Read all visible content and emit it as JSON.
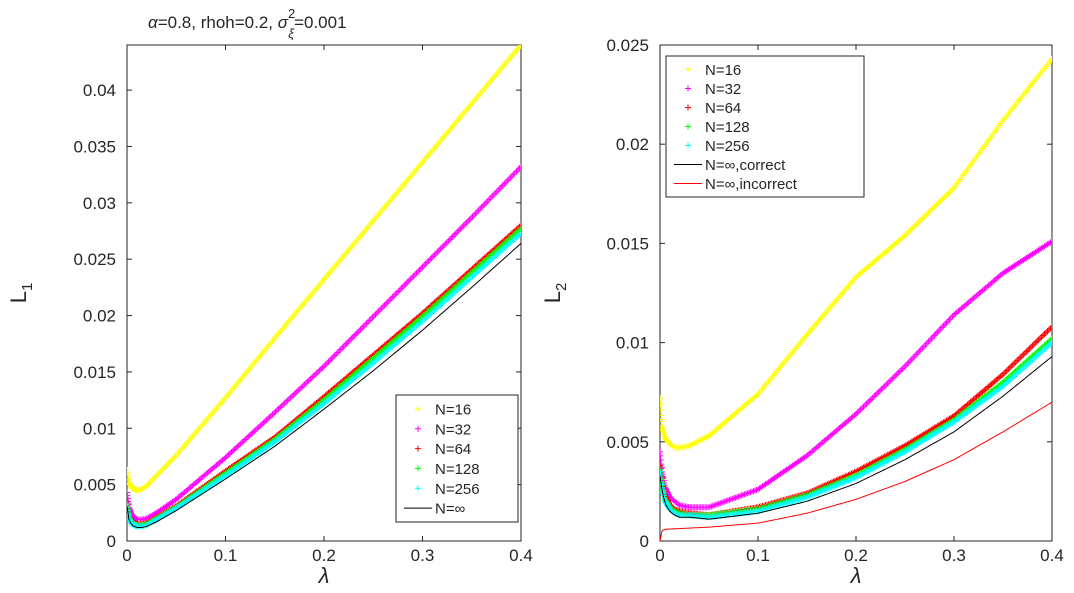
{
  "title": {
    "alpha": "0.8",
    "rhoh": "0.2",
    "sigma_xi_sq": "0.001",
    "parts": [
      {
        "sym": "α",
        "text": "=0.8, rhoh=0.2, "
      },
      {
        "sym": "σ",
        "text": ""
      },
      {
        "text": "=0.001"
      }
    ]
  },
  "colors": {
    "N=16": "#ffff00",
    "N=32": "#ff00ff",
    "N=64": "#ff0000",
    "N=128": "#00ff00",
    "N=256": "#00ffff",
    "N=∞": "#000000",
    "N=∞,correct": "#000000",
    "N=∞,incorrect": "#ff0000"
  },
  "chart_data": [
    {
      "type": "scatter",
      "xlabel": "λ",
      "ylabel": "L",
      "ylabel_sub": "1",
      "xlim": [
        0,
        0.4
      ],
      "ylim": [
        0,
        0.044
      ],
      "xticks": [
        "0",
        "0.1",
        "0.2",
        "0.3",
        "0.4"
      ],
      "yticks": [
        "0",
        "0.005",
        "0.01",
        "0.015",
        "0.02",
        "0.025",
        "0.03",
        "0.035",
        "0.04"
      ],
      "legend_position": "bottom-right",
      "series": [
        {
          "name": "N=16",
          "style": "markers",
          "x": [
            0,
            0.002,
            0.005,
            0.01,
            0.015,
            0.02,
            0.03,
            0.05,
            0.1,
            0.15,
            0.2,
            0.25,
            0.3,
            0.35,
            0.4
          ],
          "y": [
            0.0063,
            0.0052,
            0.0047,
            0.0045,
            0.0046,
            0.0049,
            0.0058,
            0.0076,
            0.0127,
            0.018,
            0.0232,
            0.0284,
            0.0336,
            0.0388,
            0.044
          ]
        },
        {
          "name": "N=32",
          "style": "markers",
          "x": [
            0,
            0.002,
            0.005,
            0.01,
            0.015,
            0.02,
            0.03,
            0.05,
            0.1,
            0.15,
            0.2,
            0.25,
            0.3,
            0.35,
            0.4
          ],
          "y": [
            0.0043,
            0.003,
            0.0023,
            0.0019,
            0.0019,
            0.002,
            0.0025,
            0.0037,
            0.0074,
            0.0114,
            0.0155,
            0.0199,
            0.0243,
            0.0287,
            0.0332
          ]
        },
        {
          "name": "N=64",
          "style": "markers",
          "x": [
            0,
            0.002,
            0.005,
            0.01,
            0.015,
            0.02,
            0.03,
            0.05,
            0.1,
            0.15,
            0.2,
            0.25,
            0.3,
            0.35,
            0.4
          ],
          "y": [
            0.0035,
            0.0022,
            0.0017,
            0.0015,
            0.0015,
            0.0016,
            0.0021,
            0.0031,
            0.0062,
            0.0092,
            0.0128,
            0.0165,
            0.0202,
            0.0241,
            0.028
          ]
        },
        {
          "name": "N=128",
          "style": "markers",
          "x": [
            0,
            0.002,
            0.005,
            0.01,
            0.015,
            0.02,
            0.03,
            0.05,
            0.1,
            0.15,
            0.2,
            0.25,
            0.3,
            0.35,
            0.4
          ],
          "y": [
            0.0033,
            0.0021,
            0.0016,
            0.0014,
            0.0014,
            0.0015,
            0.002,
            0.003,
            0.006,
            0.009,
            0.0125,
            0.0162,
            0.0199,
            0.0238,
            0.0277
          ]
        },
        {
          "name": "N=256",
          "style": "markers",
          "x": [
            0,
            0.002,
            0.005,
            0.01,
            0.015,
            0.02,
            0.03,
            0.05,
            0.1,
            0.15,
            0.2,
            0.25,
            0.3,
            0.35,
            0.4
          ],
          "y": [
            0.0032,
            0.002,
            0.0015,
            0.0013,
            0.0013,
            0.0014,
            0.0019,
            0.0029,
            0.0058,
            0.0088,
            0.0122,
            0.0158,
            0.0195,
            0.0234,
            0.0273
          ]
        },
        {
          "name": "N=∞",
          "style": "line",
          "x": [
            0,
            0.002,
            0.005,
            0.01,
            0.015,
            0.02,
            0.03,
            0.05,
            0.1,
            0.15,
            0.2,
            0.25,
            0.3,
            0.35,
            0.4
          ],
          "y": [
            0.0031,
            0.0019,
            0.0014,
            0.0012,
            0.0012,
            0.0013,
            0.0017,
            0.0027,
            0.0055,
            0.0084,
            0.0117,
            0.0151,
            0.0187,
            0.0225,
            0.0264
          ]
        }
      ]
    },
    {
      "type": "scatter",
      "xlabel": "λ",
      "ylabel": "L",
      "ylabel_sub": "2",
      "xlim": [
        0,
        0.4
      ],
      "ylim": [
        0,
        0.025
      ],
      "xticks": [
        "0",
        "0.1",
        "0.2",
        "0.3",
        "0.4"
      ],
      "yticks": [
        "0",
        "0.005",
        "0.01",
        "0.015",
        "0.02",
        "0.025"
      ],
      "legend_position": "top-left",
      "series": [
        {
          "name": "N=16",
          "style": "markers",
          "x": [
            0,
            0.002,
            0.005,
            0.01,
            0.015,
            0.02,
            0.03,
            0.05,
            0.1,
            0.15,
            0.2,
            0.25,
            0.3,
            0.35,
            0.4
          ],
          "y": [
            0.0072,
            0.0058,
            0.0052,
            0.0049,
            0.0047,
            0.0047,
            0.0048,
            0.0053,
            0.0074,
            0.0104,
            0.0133,
            0.0154,
            0.0178,
            0.0212,
            0.0243
          ]
        },
        {
          "name": "N=32",
          "style": "markers",
          "x": [
            0,
            0.002,
            0.005,
            0.01,
            0.015,
            0.02,
            0.03,
            0.05,
            0.1,
            0.15,
            0.2,
            0.25,
            0.3,
            0.35,
            0.4
          ],
          "y": [
            0.0045,
            0.0035,
            0.0027,
            0.0022,
            0.002,
            0.0018,
            0.0017,
            0.0017,
            0.0026,
            0.0043,
            0.0064,
            0.0088,
            0.0114,
            0.0135,
            0.0151
          ]
        },
        {
          "name": "N=64",
          "style": "markers",
          "x": [
            0,
            0.002,
            0.005,
            0.01,
            0.015,
            0.02,
            0.03,
            0.05,
            0.1,
            0.15,
            0.2,
            0.25,
            0.3,
            0.35,
            0.4
          ],
          "y": [
            0.0038,
            0.003,
            0.0023,
            0.0018,
            0.0016,
            0.0015,
            0.0014,
            0.0013,
            0.0017,
            0.0024,
            0.0035,
            0.0048,
            0.0063,
            0.0084,
            0.0108
          ]
        },
        {
          "name": "N=128",
          "style": "markers",
          "x": [
            0,
            0.002,
            0.005,
            0.01,
            0.015,
            0.02,
            0.03,
            0.05,
            0.1,
            0.15,
            0.2,
            0.25,
            0.3,
            0.35,
            0.4
          ],
          "y": [
            0.0036,
            0.0028,
            0.0021,
            0.0017,
            0.0015,
            0.0014,
            0.0013,
            0.0013,
            0.0016,
            0.0023,
            0.0033,
            0.0046,
            0.0061,
            0.008,
            0.0102
          ]
        },
        {
          "name": "N=256",
          "style": "markers",
          "x": [
            0,
            0.002,
            0.005,
            0.01,
            0.015,
            0.02,
            0.03,
            0.05,
            0.1,
            0.15,
            0.2,
            0.25,
            0.3,
            0.35,
            0.4
          ],
          "y": [
            0.0035,
            0.0027,
            0.002,
            0.0016,
            0.0014,
            0.0013,
            0.0013,
            0.0012,
            0.0015,
            0.0022,
            0.0032,
            0.0045,
            0.006,
            0.0078,
            0.01
          ]
        },
        {
          "name": "N=∞,correct",
          "style": "line",
          "x": [
            0,
            0.002,
            0.005,
            0.01,
            0.015,
            0.02,
            0.03,
            0.05,
            0.1,
            0.15,
            0.2,
            0.25,
            0.3,
            0.35,
            0.4
          ],
          "y": [
            0.0033,
            0.0026,
            0.0019,
            0.0015,
            0.0013,
            0.0012,
            0.0012,
            0.0011,
            0.0014,
            0.002,
            0.0029,
            0.0041,
            0.0055,
            0.0073,
            0.0093
          ]
        },
        {
          "name": "N=∞,incorrect",
          "style": "line",
          "x": [
            0,
            0.002,
            0.005,
            0.01,
            0.05,
            0.1,
            0.15,
            0.2,
            0.25,
            0.3,
            0.35,
            0.4
          ],
          "y": [
            0.0,
            0.0005,
            0.0006,
            0.0006,
            0.0007,
            0.0009,
            0.0014,
            0.0021,
            0.003,
            0.0041,
            0.0055,
            0.007
          ]
        }
      ]
    }
  ]
}
